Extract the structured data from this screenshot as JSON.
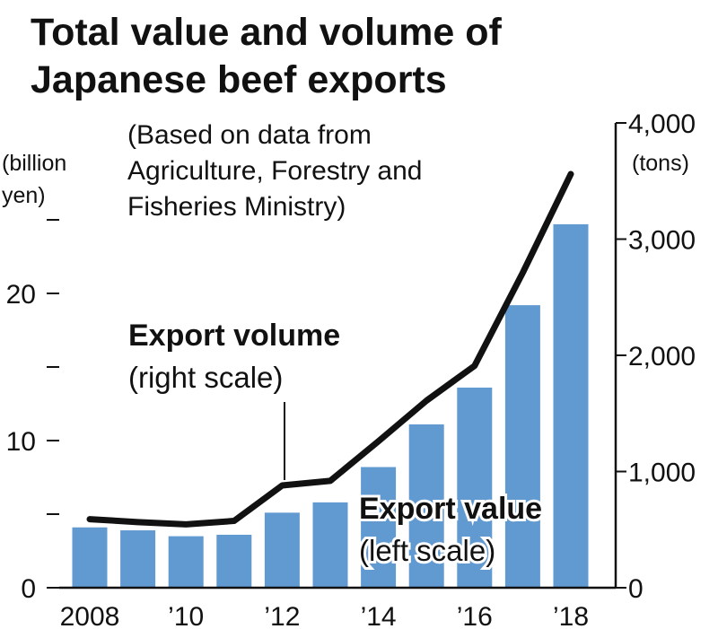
{
  "chart_data": {
    "type": "bar",
    "title_lines": [
      "Total value and volume of",
      "Japanese beef exports"
    ],
    "source_lines": [
      "(Based on data from",
      "Agriculture, Forestry and",
      "Fisheries Ministry)"
    ],
    "categories": [
      "2008",
      "2009",
      "2010",
      "2011",
      "2012",
      "2013",
      "2014",
      "2015",
      "2016",
      "2017",
      "2018"
    ],
    "x_tick_labels": [
      {
        "index": 0,
        "label": "2008"
      },
      {
        "index": 2,
        "label": "’10"
      },
      {
        "index": 4,
        "label": "’12"
      },
      {
        "index": 6,
        "label": "’14"
      },
      {
        "index": 8,
        "label": "’16"
      },
      {
        "index": 10,
        "label": "’18"
      }
    ],
    "left_axis": {
      "unit_lines": [
        "(billion",
        "yen)"
      ],
      "range": [
        0,
        25
      ],
      "tick_values": [
        0,
        5,
        10,
        15,
        20,
        25
      ],
      "tick_labels": [
        {
          "value": 0,
          "label": "0"
        },
        {
          "value": 10,
          "label": "10"
        },
        {
          "value": 20,
          "label": "20"
        }
      ]
    },
    "right_axis": {
      "unit": "(tons)",
      "range": [
        0,
        4000
      ],
      "tick_values": [
        0,
        1000,
        2000,
        3000,
        4000
      ],
      "tick_labels": [
        {
          "value": 0,
          "label": "0"
        },
        {
          "value": 1000,
          "label": "1,000"
        },
        {
          "value": 2000,
          "label": "2,000"
        },
        {
          "value": 3000,
          "label": "3,000"
        },
        {
          "value": 4000,
          "label": "4,000"
        }
      ]
    },
    "series": [
      {
        "name": "Export value",
        "note": "(left scale)",
        "type": "bar",
        "axis": "left",
        "color": "#6199d1",
        "values": [
          4.1,
          3.9,
          3.5,
          3.6,
          5.1,
          5.8,
          8.2,
          11.1,
          13.6,
          19.2,
          24.7
        ]
      },
      {
        "name": "Export volume",
        "note": "(right scale)",
        "type": "line",
        "axis": "right",
        "color": "#111111",
        "values": [
          590,
          565,
          545,
          575,
          880,
          920,
          1260,
          1610,
          1910,
          2710,
          3560
        ]
      }
    ],
    "grid": false
  }
}
